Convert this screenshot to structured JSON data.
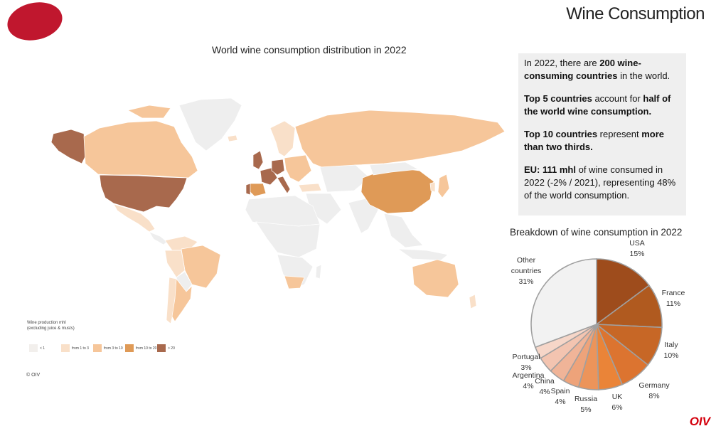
{
  "header": {
    "page_title": "Wine Consumption"
  },
  "map": {
    "title": "World wine consumption distribution in 2022",
    "legend": {
      "head_line1": "Wine production mhl",
      "head_line2": "(excluding juice & musts)",
      "items": [
        {
          "label": "< 1",
          "color": "#f2efec"
        },
        {
          "label": "from 1 to 3",
          "color": "#f9e0c9"
        },
        {
          "label": "from 3 to 10",
          "color": "#f6c69a"
        },
        {
          "label": "from 10 to 20",
          "color": "#df9a57"
        },
        {
          "label": "> 20",
          "color": "#a8694d"
        }
      ]
    },
    "copyright": "© OIV"
  },
  "info_box": {
    "p1": [
      "In 2022, there are ",
      "200 wine-consuming countries",
      " in the world."
    ],
    "p2": [
      "Top 5 countries",
      " account for ",
      "half of the world wine consumption."
    ],
    "p3": [
      "Top 10 countries",
      " represent ",
      "more than two thirds."
    ],
    "p4": [
      "EU: 111 mhl",
      " of wine consumed in 2022 (-2% / 2021), representing 48% of the world consumption."
    ]
  },
  "chart_data": {
    "type": "pie",
    "title": "Breakdown of wine consumption in 2022",
    "slices": [
      {
        "name": "USA",
        "value": 15,
        "label": "15%",
        "color": "#9e4c1c"
      },
      {
        "name": "France",
        "value": 11,
        "label": "11%",
        "color": "#b05a1f"
      },
      {
        "name": "Italy",
        "value": 10,
        "label": "10%",
        "color": "#c76726"
      },
      {
        "name": "Germany",
        "value": 8,
        "label": "8%",
        "color": "#dc7430"
      },
      {
        "name": "UK",
        "value": 6,
        "label": "6%",
        "color": "#ea8438"
      },
      {
        "name": "Russia",
        "value": 5,
        "label": "5%",
        "color": "#ec945a"
      },
      {
        "name": "Spain",
        "value": 4,
        "label": "4%",
        "color": "#eea37a"
      },
      {
        "name": "China",
        "value": 4,
        "label": "4%",
        "color": "#f0b498"
      },
      {
        "name": "Argentina",
        "value": 4,
        "label": "4%",
        "color": "#f3c4b0"
      },
      {
        "name": "Portugal",
        "value": 3,
        "label": "3%",
        "color": "#f6d6c8"
      },
      {
        "name": "Other countries",
        "value": 31,
        "label": "31%",
        "color": "#f2f2f2"
      }
    ]
  },
  "footer": {
    "logo_text": "OIV"
  }
}
